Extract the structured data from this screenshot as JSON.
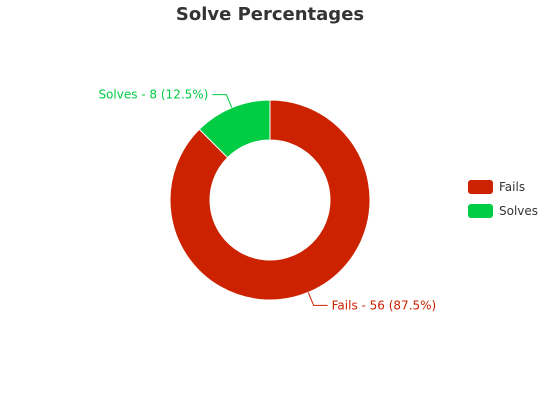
{
  "chart_data": {
    "type": "pie",
    "variant": "donut",
    "title": "Solve Percentages",
    "slices": [
      {
        "name": "Fails",
        "value": 56,
        "percent": 87.5,
        "color": "#cc2200",
        "label": "Fails - 56 (87.5%)"
      },
      {
        "name": "Solves",
        "value": 8,
        "percent": 12.5,
        "color": "#00cc44",
        "label": "Solves - 8 (12.5%)"
      }
    ],
    "legend": {
      "placement": "right",
      "items": [
        {
          "name": "Fails",
          "color": "#cc2200"
        },
        {
          "name": "Solves",
          "color": "#00cc44"
        }
      ]
    }
  }
}
